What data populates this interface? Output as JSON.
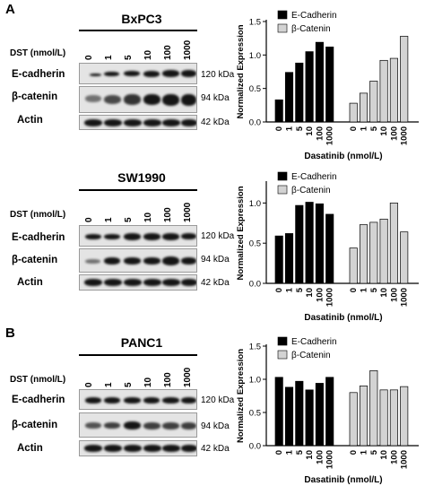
{
  "panel_a_letter": "A",
  "panel_b_letter": "B",
  "units": {
    "dst_label": "DST (nmol/L)",
    "e_cadherin_kda": "120 kDa",
    "beta_catenin_kda": "94 kDa",
    "actin_kda": "42 kDa"
  },
  "blot_labels": {
    "e_cadherin": "E-cadherin",
    "beta_catenin": "β-catenin",
    "actin": "Actin"
  },
  "doses": [
    "0",
    "1",
    "5",
    "10",
    "100",
    "1000"
  ],
  "blots": [
    {
      "cell_line": "BxPC3"
    },
    {
      "cell_line": "SW1990"
    },
    {
      "cell_line": "PANC1"
    }
  ],
  "colors": {
    "e_cadherin_bar": "#000000",
    "beta_catenin_bar": "#d3d3d3",
    "band": "#151515",
    "blot_bg": "#e4e4e4"
  },
  "chart_data": [
    {
      "type": "bar",
      "ylabel": "Normalized Expression",
      "xlabel": "Dasatinib  (nmol/L)",
      "ylim": [
        0,
        1.5
      ],
      "yticks": [
        "0.0",
        "0.5",
        "1.0",
        "1.5"
      ],
      "categories": [
        "0",
        "1",
        "5",
        "10",
        "100",
        "1000"
      ],
      "legend_position": "top",
      "series": [
        {
          "name": "E-Cadherin",
          "values": [
            0.33,
            0.74,
            0.88,
            1.05,
            1.19,
            1.12
          ]
        },
        {
          "name": "β-Catenin",
          "values": [
            0.28,
            0.43,
            0.61,
            0.92,
            0.95,
            1.28
          ]
        }
      ]
    },
    {
      "type": "bar",
      "ylabel": "Normalized Expression",
      "xlabel": "Dasatinib  (nmol/L)",
      "ylim": [
        0,
        1.25
      ],
      "yticks": [
        "0.0",
        "0.5",
        "1.0"
      ],
      "categories": [
        "0",
        "1",
        "5",
        "10",
        "100",
        "1000"
      ],
      "legend_position": "top",
      "series": [
        {
          "name": "E-Cadherin",
          "values": [
            0.59,
            0.62,
            0.97,
            1.01,
            0.99,
            0.86
          ]
        },
        {
          "name": "β-Catenin",
          "values": [
            0.44,
            0.73,
            0.76,
            0.8,
            1.0,
            0.64
          ]
        }
      ]
    },
    {
      "type": "bar",
      "ylabel": "Normalized Expression",
      "xlabel": "Dasatinib  (nmol/L)",
      "ylim": [
        0,
        1.5
      ],
      "yticks": [
        "0.0",
        "0.5",
        "1.0",
        "1.5"
      ],
      "categories": [
        "0",
        "1",
        "5",
        "10",
        "100",
        "1000"
      ],
      "legend_position": "top",
      "series": [
        {
          "name": "E-Cadherin",
          "values": [
            1.03,
            0.88,
            0.97,
            0.84,
            0.94,
            1.03
          ]
        },
        {
          "name": "β-Catenin",
          "values": [
            0.8,
            0.9,
            1.13,
            0.84,
            0.84,
            0.89
          ]
        }
      ]
    }
  ]
}
